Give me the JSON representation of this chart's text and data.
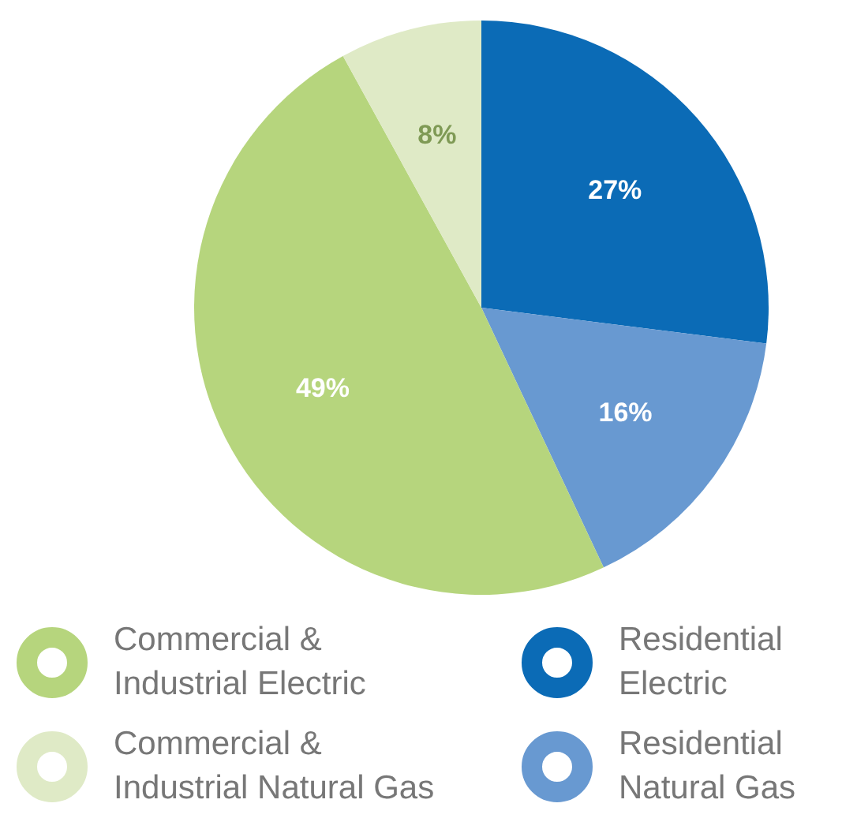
{
  "chart_data": {
    "type": "pie",
    "categories": [
      "Residential Electric",
      "Residential Natural Gas",
      "Commercial & Industrial Electric",
      "Commercial & Industrial Natural Gas"
    ],
    "values": [
      27,
      16,
      49,
      8
    ],
    "colors": [
      "#0b6bb6",
      "#6899d1",
      "#b6d57d",
      "#dfeac6"
    ],
    "value_labels": [
      "27%",
      "16%",
      "49%",
      "8%"
    ],
    "legend": "bottom"
  }
}
